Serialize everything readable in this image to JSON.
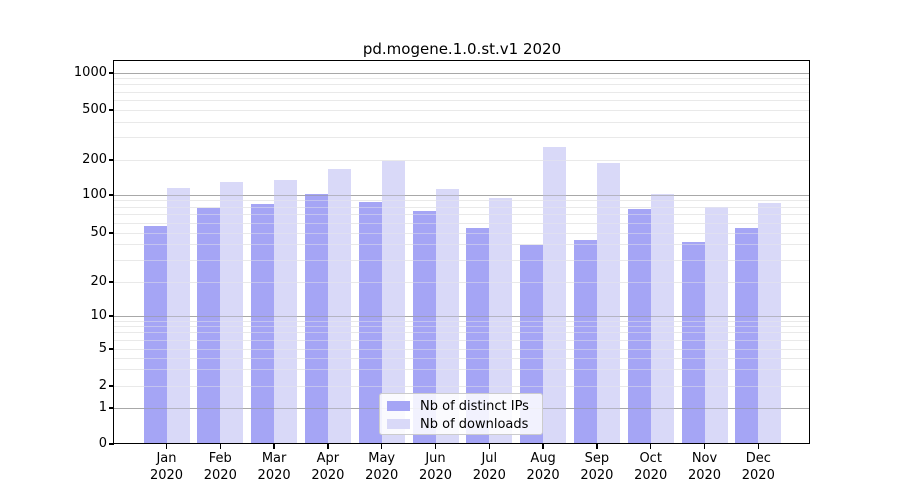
{
  "chart": {
    "colors": {
      "ips_bar": "#a5a5f5",
      "downloads_bar": "#d9d9f8",
      "grid_major": "#bfbfbf",
      "grid_major_overlay": "rgba(150,150,150,0.55)",
      "grid_minor": "#e9e9e9",
      "grid_minor_overlay": "rgba(233,233,233,0.45)",
      "frame": "#000000",
      "text": "#000000",
      "legend_border": "#cccccc"
    }
  },
  "chart_data": {
    "type": "bar",
    "title": "pd.mogene.1.0.st.v1 2020",
    "categories": [
      "Jan 2020",
      "Feb 2020",
      "Mar 2020",
      "Apr 2020",
      "May 2020",
      "Jun 2020",
      "Jul 2020",
      "Aug 2020",
      "Sep 2020",
      "Oct 2020",
      "Nov 2020",
      "Dec 2020"
    ],
    "x_tick_months": [
      "Jan",
      "Feb",
      "Mar",
      "Apr",
      "May",
      "Jun",
      "Jul",
      "Aug",
      "Sep",
      "Oct",
      "Nov",
      "Dec"
    ],
    "x_tick_year": "2020",
    "series": [
      {
        "name": "Nb of distinct IPs",
        "values": [
          57,
          79,
          85,
          102,
          88,
          75,
          55,
          40,
          44,
          77,
          42,
          55
        ]
      },
      {
        "name": "Nb of downloads",
        "values": [
          115,
          129,
          135,
          167,
          197,
          112,
          94,
          252,
          188,
          103,
          80,
          86
        ]
      }
    ],
    "yscale": "symlog",
    "yticks": [
      0,
      1,
      2,
      5,
      10,
      20,
      50,
      100,
      200,
      500,
      1000
    ],
    "ylim": [
      0,
      1000
    ],
    "grid": "both-major-and-minor",
    "legend_position": "lower center"
  }
}
